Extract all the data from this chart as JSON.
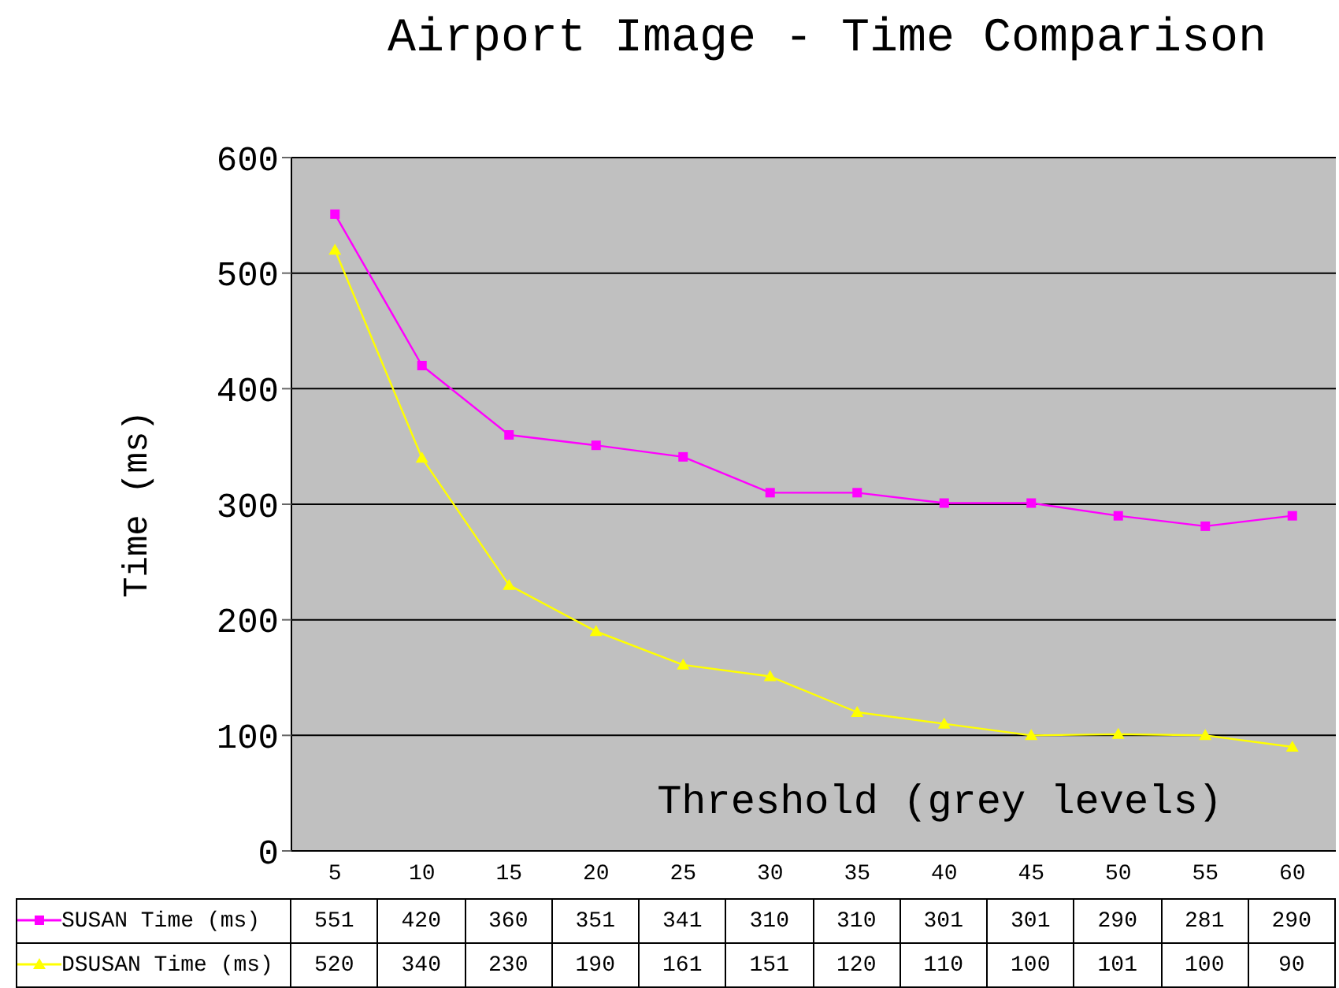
{
  "chart_data": {
    "type": "line",
    "title": "Airport Image - Time Comparison",
    "xlabel": "Threshold (grey levels)",
    "ylabel": "Time (ms)",
    "categories": [
      "5",
      "10",
      "15",
      "20",
      "25",
      "30",
      "35",
      "40",
      "45",
      "50",
      "55",
      "60"
    ],
    "series": [
      {
        "name": "SUSAN Time (ms)",
        "color": "#ff00ff",
        "marker": "square",
        "values": [
          551,
          420,
          360,
          351,
          341,
          310,
          310,
          301,
          301,
          290,
          281,
          290
        ]
      },
      {
        "name": "DSUSAN Time (ms)",
        "color": "#ffff00",
        "marker": "triangle",
        "values": [
          520,
          340,
          230,
          190,
          161,
          151,
          120,
          110,
          100,
          101,
          100,
          90
        ]
      }
    ],
    "ylim": [
      0,
      600
    ],
    "yticks": [
      0,
      100,
      200,
      300,
      400,
      500,
      600
    ],
    "grid": "y",
    "legend": "bottom",
    "data_labels": true
  }
}
